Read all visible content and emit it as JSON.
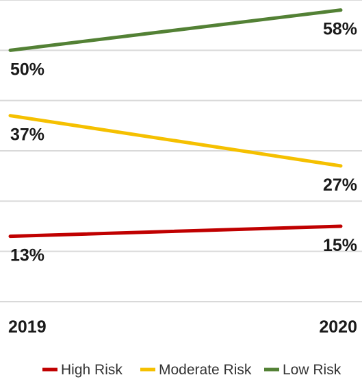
{
  "chart_data": {
    "type": "line",
    "categories": [
      "2019",
      "2020"
    ],
    "ylim": [
      0,
      60
    ],
    "grid": true,
    "legend_position": "bottom",
    "series": [
      {
        "name": "High Risk",
        "values": [
          13,
          15
        ],
        "labels": [
          "13%",
          "15%"
        ],
        "color": "#c00000"
      },
      {
        "name": "Moderate Risk",
        "values": [
          37,
          27
        ],
        "labels": [
          "37%",
          "27%"
        ],
        "color": "#f5c000"
      },
      {
        "name": "Low Risk",
        "values": [
          50,
          58
        ],
        "labels": [
          "50%",
          "58%"
        ],
        "color": "#538135"
      }
    ]
  }
}
